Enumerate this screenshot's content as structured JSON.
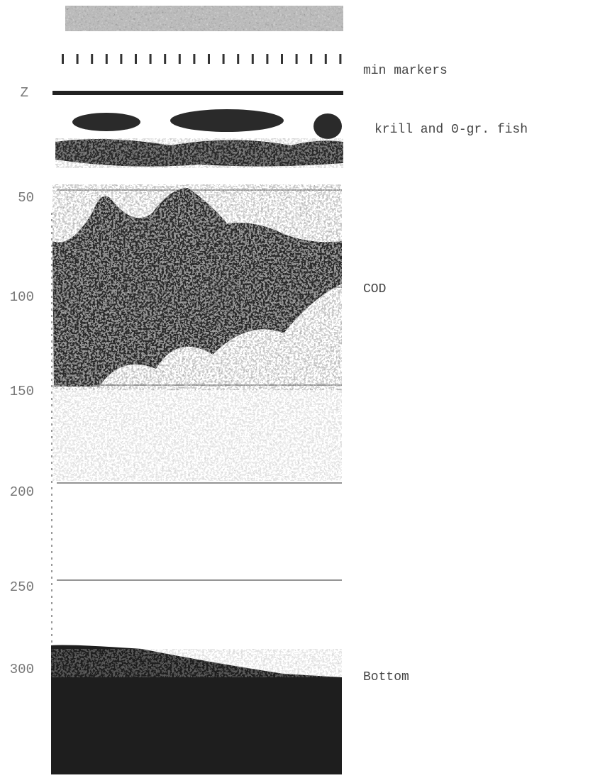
{
  "depth_axis": {
    "label": "Z",
    "ticks": [
      50,
      100,
      150,
      200,
      250,
      300
    ]
  },
  "annotations": [
    "min markers",
    "krill and 0-gr. fish",
    "COD",
    "Bottom"
  ]
}
